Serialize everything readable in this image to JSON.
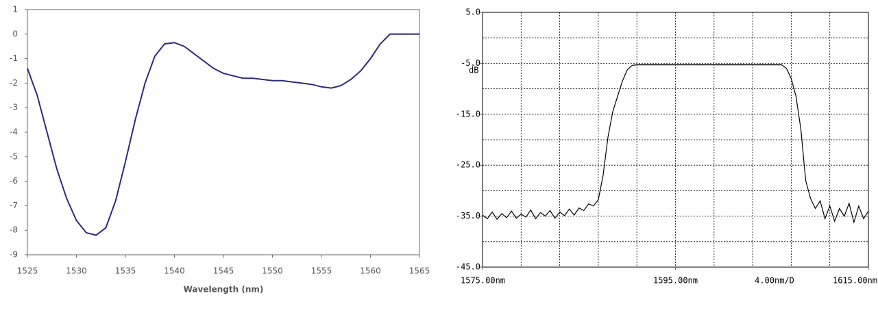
{
  "chart_data": [
    {
      "type": "line",
      "x_label": "Wavelength (nm)",
      "x": [
        1525,
        1526,
        1527,
        1528,
        1529,
        1530,
        1531,
        1532,
        1533,
        1534,
        1535,
        1536,
        1537,
        1538,
        1539,
        1540,
        1541,
        1542,
        1543,
        1544,
        1545,
        1546,
        1547,
        1548,
        1549,
        1550,
        1551,
        1552,
        1553,
        1554,
        1555,
        1556,
        1557,
        1558,
        1559,
        1560,
        1561,
        1562,
        1563,
        1564,
        1565
      ],
      "series": [
        {
          "color": "#2b2b7a",
          "values": [
            -1.4,
            -2.5,
            -4,
            -5.5,
            -6.7,
            -7.6,
            -8.1,
            -8.2,
            -7.9,
            -6.8,
            -5.2,
            -3.5,
            -2.0,
            -0.9,
            -0.4,
            -0.35,
            -0.5,
            -0.8,
            -1.1,
            -1.4,
            -1.6,
            -1.7,
            -1.8,
            -1.8,
            -1.85,
            -1.9,
            -1.9,
            -1.95,
            -2.0,
            -2.05,
            -2.15,
            -2.2,
            -2.1,
            -1.85,
            -1.5,
            -1.0,
            -0.4,
            0,
            0,
            0,
            0
          ]
        }
      ],
      "xlim": [
        1525,
        1565
      ],
      "ylim": [
        -9,
        1
      ],
      "xticks": [
        1525,
        1530,
        1535,
        1540,
        1545,
        1550,
        1555,
        1560,
        1565
      ],
      "yticks": [
        1,
        0,
        -1,
        -2,
        -3,
        -4,
        -5,
        -6,
        -7,
        -8,
        -9
      ]
    },
    {
      "type": "line",
      "y_unit_label": "dB",
      "annotation": "4.00nm/D",
      "x": [
        1575,
        1575.5,
        1576,
        1576.5,
        1577,
        1577.5,
        1578,
        1578.5,
        1579,
        1579.5,
        1580,
        1580.5,
        1581,
        1581.5,
        1582,
        1582.5,
        1583,
        1583.5,
        1584,
        1584.5,
        1585,
        1585.5,
        1586,
        1586.5,
        1587,
        1587.5,
        1588,
        1588.5,
        1589,
        1589.5,
        1590,
        1590.5,
        1591,
        1592,
        1594,
        1596,
        1598,
        1600,
        1602,
        1604,
        1606,
        1606.5,
        1607,
        1607.5,
        1608,
        1608.5,
        1609,
        1609.5,
        1610,
        1610.5,
        1611,
        1611.5,
        1612,
        1612.5,
        1613,
        1613.5,
        1614,
        1614.5,
        1615
      ],
      "series": [
        {
          "color": "#000000",
          "values": [
            -34.8,
            -35.5,
            -34.2,
            -35.6,
            -34.5,
            -35.3,
            -34.0,
            -35.4,
            -34.6,
            -35.2,
            -33.8,
            -35.5,
            -34.3,
            -35.0,
            -33.9,
            -35.4,
            -34.2,
            -34.9,
            -33.6,
            -34.8,
            -33.4,
            -33.9,
            -32.6,
            -33.0,
            -31.8,
            -27.0,
            -19.5,
            -14.5,
            -11.5,
            -8.5,
            -6.3,
            -5.4,
            -5.3,
            -5.3,
            -5.3,
            -5.3,
            -5.3,
            -5.3,
            -5.3,
            -5.3,
            -5.3,
            -6.0,
            -8.0,
            -11.5,
            -18,
            -28,
            -31.5,
            -33.5,
            -32.0,
            -35.5,
            -33.0,
            -36.0,
            -33.5,
            -35.0,
            -32.5,
            -36.2,
            -33.0,
            -35.5,
            -34.0
          ]
        }
      ],
      "xlim": [
        1575,
        1615
      ],
      "ylim": [
        -45,
        5
      ],
      "xticks": [
        {
          "value": 1575,
          "label": "1575.00nm"
        },
        {
          "value": 1595,
          "label": "1595.00nm"
        },
        {
          "value": 1615,
          "label": "1615.00nm"
        }
      ],
      "yticks": [
        {
          "value": 5,
          "label": "5.0"
        },
        {
          "value": -5,
          "label": "-5.0"
        },
        {
          "value": -15,
          "label": "-15.0"
        },
        {
          "value": -25,
          "label": "-25.0"
        },
        {
          "value": -35,
          "label": "-35.0"
        },
        {
          "value": -45,
          "label": "-45.0"
        }
      ],
      "grid": true,
      "xdivisions": 10,
      "ydivisions": 10
    }
  ]
}
